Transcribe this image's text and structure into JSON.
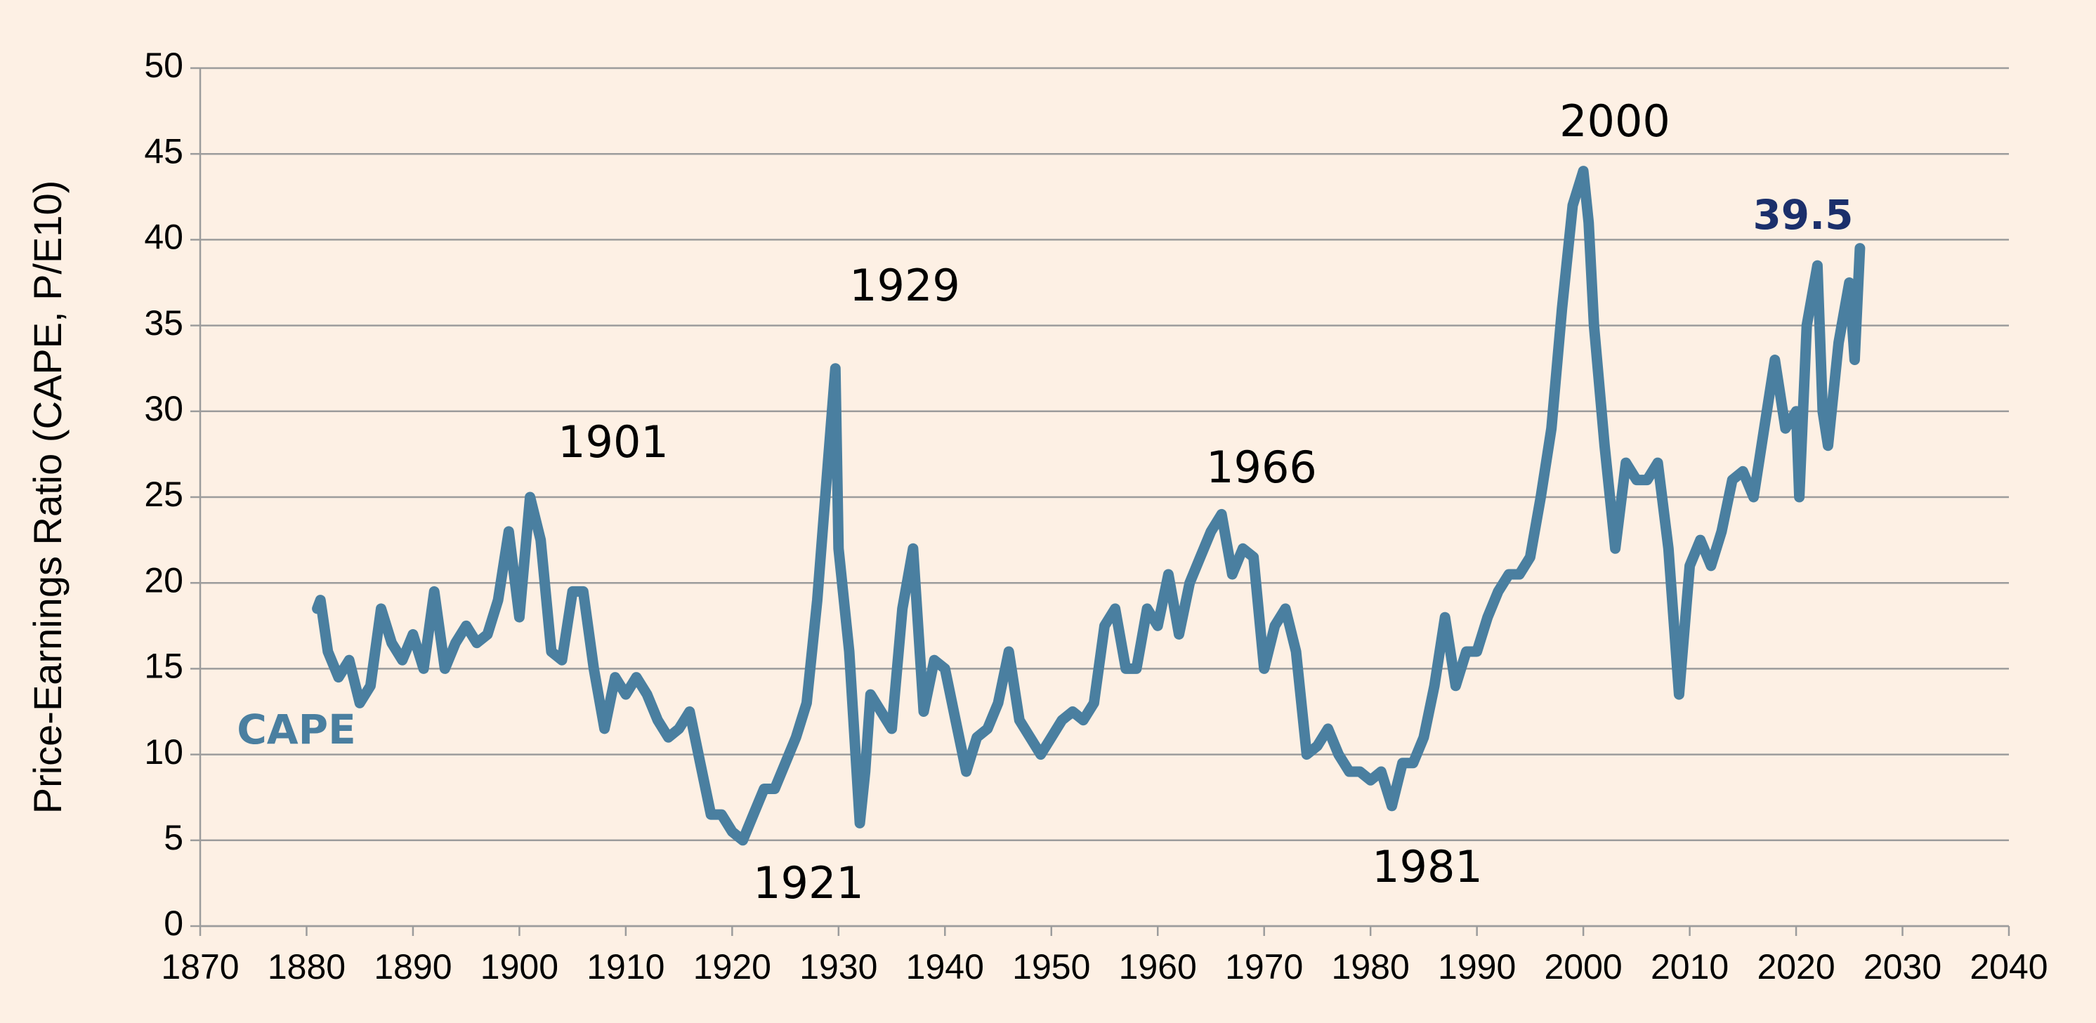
{
  "chart_data": {
    "type": "line",
    "y_label": "Price-Earnings Ratio (CAPE, P/E10)",
    "xlim": [
      1870,
      2040
    ],
    "xticks": [
      1870,
      1880,
      1890,
      1900,
      1910,
      1920,
      1930,
      1940,
      1950,
      1960,
      1970,
      1980,
      1990,
      2000,
      2010,
      2020,
      2030,
      2040
    ],
    "ylim": [
      0,
      50
    ],
    "yticks": [
      0,
      5,
      10,
      15,
      20,
      25,
      30,
      35,
      40,
      45,
      50
    ],
    "grid": true,
    "annotations": [
      "1901",
      "1929",
      "1921",
      "1966",
      "1981",
      "2000",
      "39.5"
    ],
    "series": [
      {
        "name": "CAPE",
        "color": "#4a7fa0",
        "x": [
          1881,
          1881.3,
          1882,
          1883,
          1884,
          1885,
          1886,
          1887,
          1888,
          1889,
          1890,
          1891,
          1892,
          1893,
          1894,
          1895,
          1896,
          1897,
          1898,
          1899,
          1900,
          1901,
          1902,
          1903,
          1904,
          1905,
          1906,
          1907,
          1908,
          1909,
          1910,
          1911,
          1912,
          1913,
          1914,
          1915,
          1916,
          1917,
          1918,
          1919,
          1920,
          1921,
          1922,
          1923,
          1924,
          1925,
          1926,
          1927,
          1928,
          1929,
          1929.7,
          1930,
          1931,
          1932,
          1932.5,
          1933,
          1934,
          1935,
          1936,
          1937,
          1938,
          1939,
          1940,
          1941,
          1942,
          1943,
          1944,
          1945,
          1946,
          1947,
          1948,
          1949,
          1950,
          1951,
          1952,
          1953,
          1954,
          1955,
          1956,
          1957,
          1958,
          1959,
          1960,
          1961,
          1962,
          1963,
          1964,
          1965,
          1966,
          1967,
          1968,
          1969,
          1970,
          1971,
          1972,
          1973,
          1974,
          1975,
          1976,
          1977,
          1978,
          1979,
          1980,
          1981,
          1982,
          1983,
          1984,
          1985,
          1986,
          1987,
          1988,
          1989,
          1990,
          1991,
          1992,
          1993,
          1994,
          1995,
          1996,
          1997,
          1998,
          1999,
          2000,
          2000.5,
          2001,
          2002,
          2003,
          2004,
          2005,
          2006,
          2007,
          2008,
          2009,
          2010,
          2011,
          2012,
          2013,
          2014,
          2015,
          2016,
          2017,
          2018,
          2019,
          2020,
          2020.3,
          2021,
          2022,
          2022.5,
          2023,
          2024,
          2025,
          2025.5,
          2026
        ],
        "values": [
          18.5,
          19,
          16,
          14.5,
          15.5,
          13,
          14,
          18.5,
          16.5,
          15.5,
          17,
          15,
          19.5,
          15,
          16.5,
          17.5,
          16.5,
          17,
          19,
          23,
          18,
          25,
          22.5,
          16,
          15.5,
          19.5,
          19.5,
          15,
          11.5,
          14.5,
          13.5,
          14.5,
          13.5,
          12,
          11,
          11.5,
          12.5,
          9.5,
          6.5,
          6.5,
          5.5,
          5,
          6.5,
          8,
          8,
          9.5,
          11,
          13,
          19,
          27,
          32.5,
          22,
          16,
          6,
          9,
          13.5,
          12.5,
          11.5,
          18.5,
          22,
          12.5,
          15.5,
          15,
          12,
          9,
          11,
          11.5,
          13,
          16,
          12,
          11,
          10,
          11,
          12,
          12.5,
          12,
          13,
          17.5,
          18.5,
          15,
          15,
          18.5,
          17.5,
          20.5,
          17,
          20,
          21.5,
          23,
          24,
          20.5,
          22,
          21.5,
          15,
          17.5,
          18.5,
          16,
          10,
          10.5,
          11.5,
          10,
          9,
          9,
          8.5,
          9,
          7,
          9.5,
          9.5,
          11,
          14,
          18,
          14,
          16,
          16,
          18,
          19.5,
          20.5,
          20.5,
          21.5,
          25,
          29,
          36,
          42,
          44,
          41,
          35,
          28,
          22,
          27,
          26,
          26,
          27,
          22,
          13.5,
          21,
          22.5,
          21,
          23,
          26,
          26.5,
          25,
          29,
          33,
          29,
          30,
          25,
          35,
          38.5,
          30,
          28,
          34,
          37.5,
          33,
          39.5
        ]
      }
    ]
  }
}
